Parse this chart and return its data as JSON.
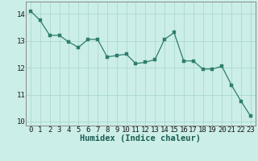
{
  "x": [
    0,
    1,
    2,
    3,
    4,
    5,
    6,
    7,
    8,
    9,
    10,
    11,
    12,
    13,
    14,
    15,
    16,
    17,
    18,
    19,
    20,
    21,
    22,
    23
  ],
  "y": [
    14.1,
    13.75,
    13.2,
    13.2,
    12.95,
    12.75,
    13.05,
    13.05,
    12.4,
    12.45,
    12.5,
    12.15,
    12.2,
    12.3,
    13.05,
    13.3,
    12.25,
    12.25,
    11.95,
    11.95,
    12.05,
    11.35,
    10.75,
    10.2
  ],
  "xlabel": "Humidex (Indice chaleur)",
  "xlim": [
    -0.5,
    23.5
  ],
  "ylim": [
    9.85,
    14.45
  ],
  "yticks": [
    10,
    11,
    12,
    13,
    14
  ],
  "xticks": [
    0,
    1,
    2,
    3,
    4,
    5,
    6,
    7,
    8,
    9,
    10,
    11,
    12,
    13,
    14,
    15,
    16,
    17,
    18,
    19,
    20,
    21,
    22,
    23
  ],
  "line_color": "#2e7d6e",
  "marker_color": "#2e7d6e",
  "bg_color": "#cceee8",
  "grid_color": "#aad8d0",
  "xlabel_fontsize": 7.5,
  "tick_fontsize": 6.5
}
